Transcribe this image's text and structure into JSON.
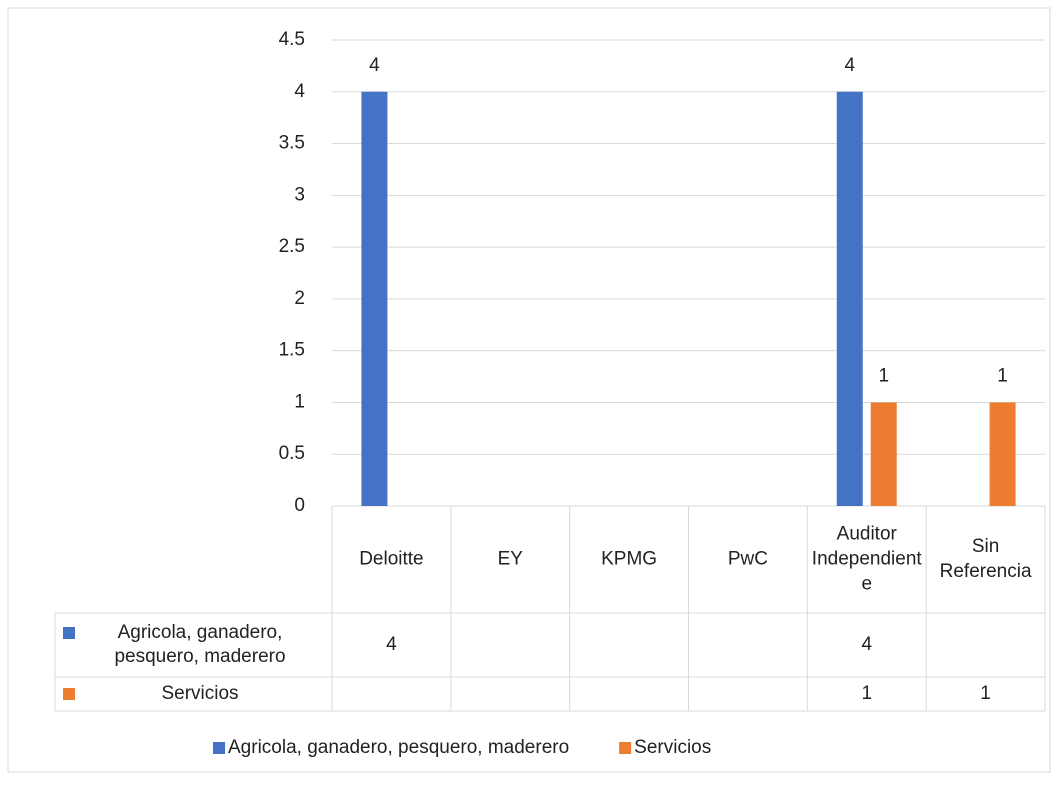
{
  "chart_data": {
    "type": "bar",
    "categories": [
      "Deloitte",
      "EY",
      "KPMG",
      "PwC",
      "Auditor Independiente",
      "Sin Referencia"
    ],
    "series": [
      {
        "name": "Agricola, ganadero, pesquero, maderero",
        "color": "#4472c4",
        "values": [
          4,
          null,
          null,
          null,
          4,
          null
        ]
      },
      {
        "name": "Servicios",
        "color": "#ed7d31",
        "values": [
          null,
          null,
          null,
          null,
          1,
          1
        ]
      }
    ],
    "ylim": [
      0,
      4.5
    ],
    "yticks": [
      0,
      0.5,
      1,
      1.5,
      2,
      2.5,
      3,
      3.5,
      4,
      4.5
    ],
    "grid": true,
    "legend": "bottom"
  }
}
